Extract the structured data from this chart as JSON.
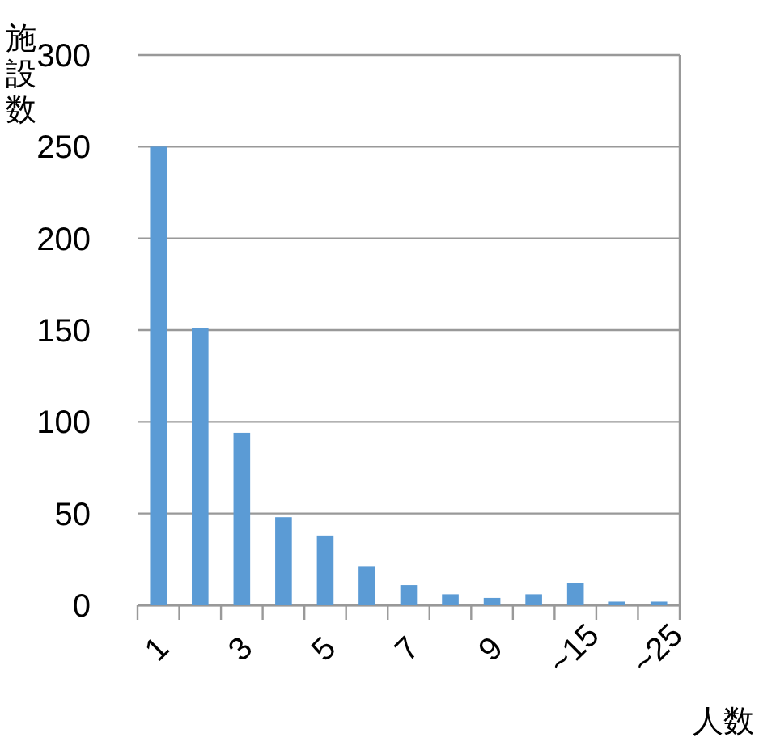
{
  "chart_data": {
    "type": "bar",
    "ylabel": "施設数",
    "xlabel": "人数",
    "categories": [
      "1",
      null,
      "3",
      null,
      "5",
      null,
      "7",
      null,
      "9",
      null,
      "~15",
      null,
      "~25"
    ],
    "values": [
      250,
      151,
      94,
      48,
      38,
      21,
      11,
      6,
      4,
      6,
      12,
      2,
      2
    ],
    "color": "#5b9bd5",
    "ylim": [
      0,
      300
    ],
    "yticks": [
      0,
      50,
      100,
      150,
      200,
      250,
      300
    ],
    "grid": "y"
  }
}
